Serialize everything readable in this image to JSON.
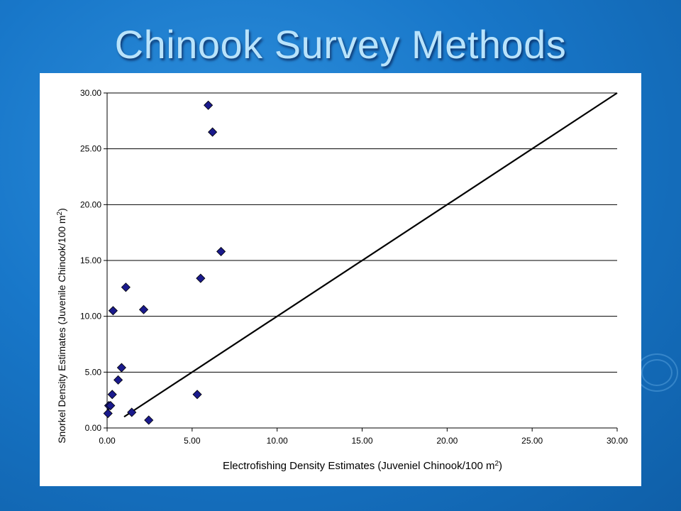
{
  "slide": {
    "title": "Chinook Survey Methods"
  },
  "chart_data": {
    "type": "scatter",
    "xlabel_main": "Electrofishing Density Estimates (Juveniel Chinook/100 m",
    "xlabel_sup": "2",
    "xlabel_end": ")",
    "ylabel_main": "Snorkel Density Estimates (Juvenile Chinook/100 m",
    "ylabel_sup": "2",
    "ylabel_end": ")",
    "xlim": [
      0,
      30
    ],
    "ylim": [
      0,
      30
    ],
    "x_ticks": [
      "0.00",
      "5.00",
      "10.00",
      "15.00",
      "20.00",
      "25.00",
      "30.00"
    ],
    "y_ticks": [
      "0.00",
      "5.00",
      "10.00",
      "15.00",
      "20.00",
      "25.00",
      "30.00"
    ],
    "grid": "horizontal",
    "marker": "diamond",
    "marker_color": "#1a1a8c",
    "line_color": "#000000",
    "reference_line": {
      "x": [
        1.0,
        30.0
      ],
      "y": [
        1.0,
        30.0
      ]
    },
    "points": [
      {
        "x": 0.05,
        "y": 1.3
      },
      {
        "x": 0.1,
        "y": 2.0
      },
      {
        "x": 0.2,
        "y": 2.0
      },
      {
        "x": 0.3,
        "y": 3.0
      },
      {
        "x": 0.35,
        "y": 10.5
      },
      {
        "x": 0.65,
        "y": 4.3
      },
      {
        "x": 0.85,
        "y": 5.4
      },
      {
        "x": 1.1,
        "y": 12.6
      },
      {
        "x": 1.45,
        "y": 1.4
      },
      {
        "x": 2.15,
        "y": 10.6
      },
      {
        "x": 2.45,
        "y": 0.7
      },
      {
        "x": 5.3,
        "y": 3.0
      },
      {
        "x": 5.5,
        "y": 13.4
      },
      {
        "x": 5.95,
        "y": 28.9
      },
      {
        "x": 6.2,
        "y": 26.5
      },
      {
        "x": 6.7,
        "y": 15.8
      }
    ]
  }
}
